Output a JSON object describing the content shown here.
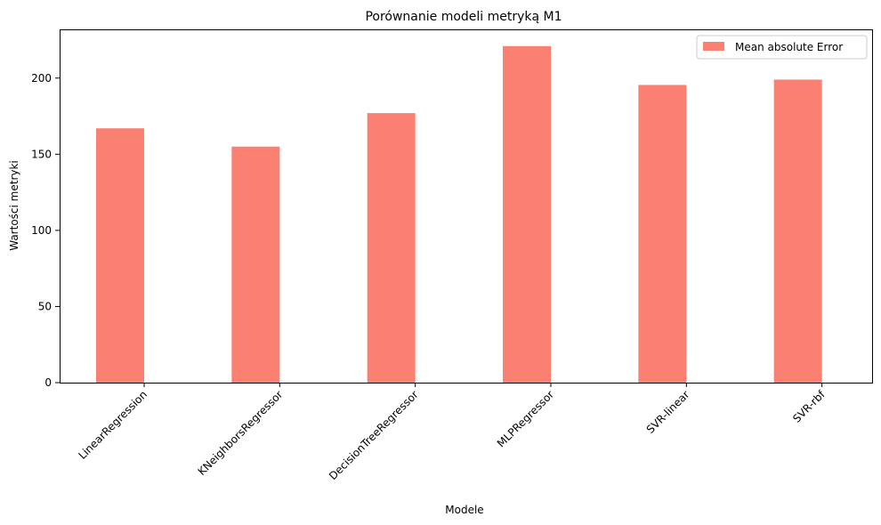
{
  "chart_data": {
    "type": "bar",
    "title": "Porównanie modeli metryką M1",
    "xlabel": "Modele",
    "ylabel": "Wartości metryki",
    "categories": [
      "LinearRegression",
      "KNeighborsRegressor",
      "DecisionTreeRegressor",
      "MLPRegressor",
      "SVR-linear",
      "SVR-rbf"
    ],
    "series": [
      {
        "name": "Mean absolute Error",
        "color": "#fa8072",
        "values": [
          167,
          155,
          177,
          221,
          195.5,
          199
        ]
      }
    ],
    "ylim": [
      0,
      232
    ],
    "yticks": [
      "0",
      "50",
      "100",
      "150",
      "200"
    ],
    "grid": false,
    "legend_position": "top-right"
  }
}
